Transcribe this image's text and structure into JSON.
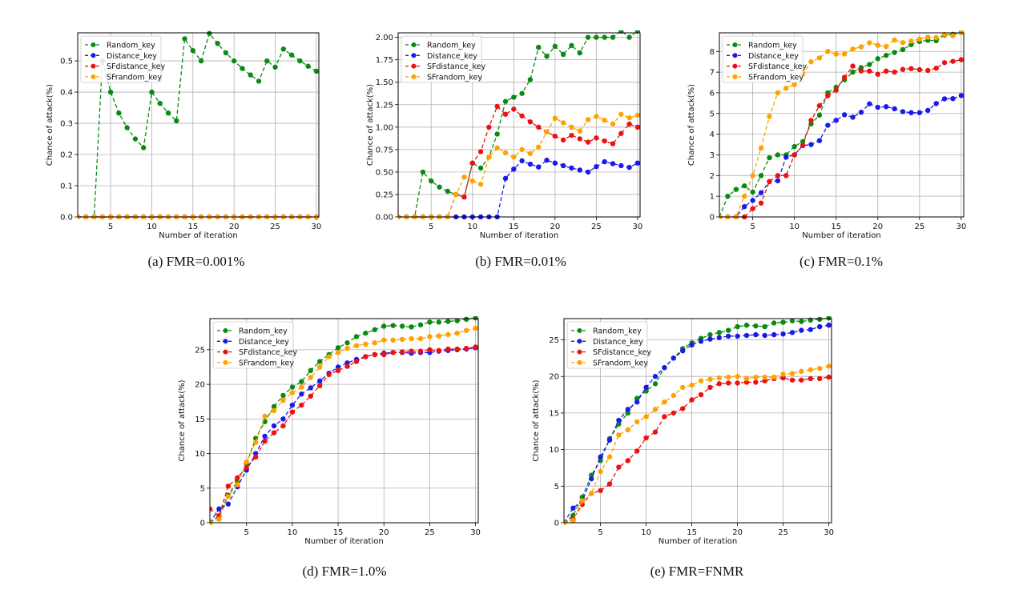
{
  "legend_labels": [
    "Random_key",
    "Distance_key",
    "SFdistance_key",
    "SFrandom_key"
  ],
  "colors": {
    "Random_key": "#0a8a12",
    "Distance_key": "#1a1aee",
    "SFdistance_key": "#ee1111",
    "SFrandom_key": "#ffa200"
  },
  "chart_data": [
    {
      "type": "line",
      "caption": "(a) FMR=0.001%",
      "xlabel": "Number of iteration",
      "ylabel": "Chance of attack(%)",
      "xlim": [
        1,
        30.3
      ],
      "ylim": [
        0,
        0.59
      ],
      "xticks": [
        5,
        10,
        15,
        20,
        25,
        30
      ],
      "yticks": [
        0.0,
        0.1,
        0.2,
        0.3,
        0.4,
        0.5
      ],
      "ytick_labels": [
        "0.0",
        "0.1",
        "0.2",
        "0.3",
        "0.4",
        "0.5"
      ],
      "grid": true,
      "legend_position": "top-left",
      "x": [
        1,
        2,
        3,
        4,
        5,
        6,
        7,
        8,
        9,
        10,
        11,
        12,
        13,
        14,
        15,
        16,
        17,
        18,
        19,
        20,
        21,
        22,
        23,
        24,
        25,
        26,
        27,
        28,
        29,
        30
      ],
      "series": [
        {
          "name": "Random_key",
          "values": [
            0,
            0,
            0,
            0.5,
            0.4,
            0.333,
            0.286,
            0.25,
            0.222,
            0.4,
            0.364,
            0.333,
            0.308,
            0.571,
            0.533,
            0.5,
            0.588,
            0.556,
            0.526,
            0.5,
            0.476,
            0.455,
            0.435,
            0.5,
            0.48,
            0.538,
            0.519,
            0.5,
            0.483,
            0.467
          ]
        },
        {
          "name": "Distance_key",
          "values": [
            0,
            0,
            0,
            0,
            0,
            0,
            0,
            0,
            0,
            0,
            0,
            0,
            0,
            0,
            0,
            0,
            0,
            0,
            0,
            0,
            0,
            0,
            0,
            0,
            0,
            0,
            0,
            0,
            0,
            0
          ]
        },
        {
          "name": "SFdistance_key",
          "values": [
            0,
            0,
            0,
            0,
            0,
            0,
            0,
            0,
            0,
            0,
            0,
            0,
            0,
            0,
            0,
            0,
            0,
            0,
            0,
            0,
            0,
            0,
            0,
            0,
            0,
            0,
            0,
            0,
            0,
            0
          ]
        },
        {
          "name": "SFrandom_key",
          "values": [
            0,
            0,
            0,
            0,
            0,
            0,
            0,
            0,
            0,
            0,
            0,
            0,
            0,
            0,
            0,
            0,
            0,
            0,
            0,
            0,
            0,
            0,
            0,
            0,
            0,
            0,
            0,
            0,
            0,
            0
          ]
        }
      ]
    },
    {
      "type": "line",
      "caption": "(b) FMR=0.01%",
      "xlabel": "Number of iteration",
      "ylabel": "Chance of attack(%)",
      "xlim": [
        1,
        30.3
      ],
      "ylim": [
        0,
        2.05
      ],
      "xticks": [
        5,
        10,
        15,
        20,
        25,
        30
      ],
      "yticks": [
        0,
        0.25,
        0.5,
        0.75,
        1.0,
        1.25,
        1.5,
        1.75,
        2.0
      ],
      "ytick_labels": [
        "0.00",
        "0.25",
        "0.50",
        "0.75",
        "1.00",
        "1.25",
        "1.50",
        "1.75",
        "2.00"
      ],
      "grid": true,
      "legend_position": "top-left",
      "x": [
        1,
        2,
        3,
        4,
        5,
        6,
        7,
        8,
        9,
        10,
        11,
        12,
        13,
        14,
        15,
        16,
        17,
        18,
        19,
        20,
        21,
        22,
        23,
        24,
        25,
        26,
        27,
        28,
        29,
        30
      ],
      "series": [
        {
          "name": "Random_key",
          "values": [
            0,
            0,
            0,
            0.5,
            0.4,
            0.333,
            0.286,
            0.25,
            0.222,
            0.6,
            0.545,
            0.667,
            0.923,
            1.286,
            1.333,
            1.375,
            1.529,
            1.889,
            1.789,
            1.9,
            1.81,
            1.909,
            1.826,
            2.0,
            2.0,
            2.0,
            2.0,
            2.07,
            2.0,
            2.07
          ]
        },
        {
          "name": "Distance_key",
          "values": [
            0,
            0,
            0,
            0,
            0,
            0,
            0,
            0,
            0,
            0,
            0,
            0,
            0,
            0.429,
            0.533,
            0.625,
            0.588,
            0.556,
            0.632,
            0.6,
            0.571,
            0.545,
            0.522,
            0.5,
            0.56,
            0.615,
            0.593,
            0.571,
            0.552,
            0.6
          ]
        },
        {
          "name": "SFdistance_key",
          "values": [
            0,
            0,
            0,
            0,
            0,
            0,
            0,
            0.25,
            0.222,
            0.6,
            0.727,
            1.0,
            1.231,
            1.143,
            1.2,
            1.125,
            1.059,
            1.0,
            0.947,
            0.9,
            0.857,
            0.909,
            0.87,
            0.833,
            0.88,
            0.846,
            0.815,
            0.929,
            1.034,
            1.0
          ]
        },
        {
          "name": "SFrandom_key",
          "values": [
            0,
            0,
            0,
            0,
            0,
            0,
            0,
            0.25,
            0.444,
            0.4,
            0.364,
            0.667,
            0.769,
            0.714,
            0.667,
            0.75,
            0.706,
            0.778,
            0.947,
            1.1,
            1.048,
            1.0,
            0.957,
            1.083,
            1.12,
            1.077,
            1.037,
            1.143,
            1.103,
            1.133
          ]
        }
      ]
    },
    {
      "type": "line",
      "caption": "(c) FMR=0.1%",
      "xlabel": "Number of iteration",
      "ylabel": "Chance of attack(%)",
      "xlim": [
        1,
        30.3
      ],
      "ylim": [
        0,
        8.9
      ],
      "xticks": [
        5,
        10,
        15,
        20,
        25,
        30
      ],
      "yticks": [
        0,
        1,
        2,
        3,
        4,
        5,
        6,
        7,
        8
      ],
      "ytick_labels": [
        "0",
        "1",
        "2",
        "3",
        "4",
        "5",
        "6",
        "7",
        "8"
      ],
      "grid": true,
      "legend_position": "top-left",
      "x": [
        1,
        2,
        3,
        4,
        5,
        6,
        7,
        8,
        9,
        10,
        11,
        12,
        13,
        14,
        15,
        16,
        17,
        18,
        19,
        20,
        21,
        22,
        23,
        24,
        25,
        26,
        27,
        28,
        29,
        30
      ],
      "series": [
        {
          "name": "Random_key",
          "values": [
            0,
            1.0,
            1.33,
            1.5,
            1.2,
            2.0,
            2.86,
            3.0,
            3.0,
            3.4,
            3.64,
            4.5,
            4.92,
            6.0,
            6.27,
            6.63,
            7.0,
            7.22,
            7.37,
            7.65,
            7.81,
            7.95,
            8.09,
            8.33,
            8.48,
            8.54,
            8.52,
            8.79,
            8.83,
            8.93
          ]
        },
        {
          "name": "Distance_key",
          "values": [
            0,
            0,
            0,
            0.5,
            0.8,
            1.17,
            1.71,
            1.75,
            2.89,
            3.0,
            3.45,
            3.5,
            3.69,
            4.43,
            4.67,
            4.94,
            4.82,
            5.06,
            5.47,
            5.3,
            5.33,
            5.23,
            5.09,
            5.04,
            5.04,
            5.15,
            5.48,
            5.71,
            5.72,
            5.87
          ]
        },
        {
          "name": "SFdistance_key",
          "values": [
            0,
            0,
            0,
            0,
            0.4,
            0.67,
            1.71,
            2.0,
            2.0,
            3.0,
            3.45,
            4.67,
            5.38,
            5.86,
            6.13,
            6.75,
            7.29,
            7.06,
            7.05,
            6.9,
            7.05,
            7.0,
            7.13,
            7.17,
            7.12,
            7.08,
            7.19,
            7.46,
            7.52,
            7.6
          ]
        },
        {
          "name": "SFrandom_key",
          "values": [
            0,
            0,
            0,
            1.0,
            2.0,
            3.33,
            4.86,
            6.0,
            6.22,
            6.4,
            6.91,
            7.5,
            7.69,
            8.0,
            7.87,
            7.88,
            8.12,
            8.22,
            8.42,
            8.3,
            8.24,
            8.55,
            8.43,
            8.5,
            8.6,
            8.69,
            8.67,
            8.82,
            8.76,
            8.9
          ]
        }
      ]
    },
    {
      "type": "line",
      "caption": "(d) FMR=1.0%",
      "xlabel": "Number of iteration",
      "ylabel": "Chance of attack(%)",
      "xlim": [
        1,
        30.3
      ],
      "ylim": [
        0,
        29.5
      ],
      "xticks": [
        5,
        10,
        15,
        20,
        25,
        30
      ],
      "yticks": [
        0,
        5,
        10,
        15,
        20,
        25
      ],
      "ytick_labels": [
        "0",
        "5",
        "10",
        "15",
        "20",
        "25"
      ],
      "grid": true,
      "legend_position": "top-left",
      "x": [
        1,
        2,
        3,
        4,
        5,
        6,
        7,
        8,
        9,
        10,
        11,
        12,
        13,
        14,
        15,
        16,
        17,
        18,
        19,
        20,
        21,
        22,
        23,
        24,
        25,
        26,
        27,
        28,
        29,
        30
      ],
      "series": [
        {
          "name": "Random_key",
          "values": [
            0,
            1.0,
            4.0,
            6.0,
            8.5,
            12.2,
            14.6,
            16.8,
            18.4,
            19.6,
            20.4,
            22.0,
            23.3,
            24.3,
            25.3,
            26.0,
            26.9,
            27.4,
            27.9,
            28.4,
            28.5,
            28.4,
            28.3,
            28.6,
            29.0,
            29.0,
            29.1,
            29.2,
            29.4,
            29.6
          ]
        },
        {
          "name": "Distance_key",
          "values": [
            0,
            2.0,
            2.7,
            5.2,
            7.6,
            10.0,
            12.5,
            14.0,
            15.0,
            17.0,
            18.6,
            19.5,
            20.5,
            21.6,
            22.5,
            23.1,
            23.6,
            24.0,
            24.3,
            24.5,
            24.6,
            24.6,
            24.5,
            24.6,
            24.6,
            24.8,
            24.9,
            25.0,
            25.1,
            25.3
          ]
        },
        {
          "name": "SFdistance_key",
          "values": [
            2.0,
            1.0,
            5.3,
            6.5,
            8.0,
            9.5,
            11.8,
            13.0,
            14.0,
            16.0,
            17.0,
            18.3,
            19.8,
            21.4,
            22.0,
            22.6,
            23.3,
            24.0,
            24.3,
            24.3,
            24.6,
            24.7,
            24.8,
            24.8,
            25.0,
            24.9,
            25.1,
            25.1,
            25.2,
            25.4
          ]
        },
        {
          "name": "SFrandom_key",
          "values": [
            0,
            0.5,
            3.8,
            5.5,
            8.8,
            11.6,
            15.4,
            16.2,
            17.7,
            18.8,
            19.6,
            21.0,
            22.5,
            24.0,
            24.6,
            25.2,
            25.6,
            25.8,
            26.0,
            26.4,
            26.4,
            26.5,
            26.6,
            26.6,
            26.9,
            27.0,
            27.2,
            27.4,
            27.8,
            28.1
          ]
        }
      ]
    },
    {
      "type": "line",
      "caption": "(e) FMR=FNMR",
      "xlabel": "Number of iteration",
      "ylabel": "Chance of attack(%)",
      "xlim": [
        1,
        30.3
      ],
      "ylim": [
        0,
        27.9
      ],
      "xticks": [
        5,
        10,
        15,
        20,
        25,
        30
      ],
      "yticks": [
        0,
        5,
        10,
        15,
        20,
        25
      ],
      "ytick_labels": [
        "0",
        "5",
        "10",
        "15",
        "20",
        "25"
      ],
      "grid": true,
      "legend_position": "top-left",
      "x": [
        1,
        2,
        3,
        4,
        5,
        6,
        7,
        8,
        9,
        10,
        11,
        12,
        13,
        14,
        15,
        16,
        17,
        18,
        19,
        20,
        21,
        22,
        23,
        24,
        25,
        26,
        27,
        28,
        29,
        30
      ],
      "series": [
        {
          "name": "Random_key",
          "values": [
            0,
            1.0,
            3.5,
            6.5,
            8.5,
            11.5,
            13.5,
            15.0,
            17.0,
            18.0,
            19.0,
            21.2,
            22.5,
            23.8,
            24.6,
            25.2,
            25.7,
            26.0,
            26.3,
            26.8,
            27.0,
            26.9,
            26.8,
            27.3,
            27.4,
            27.6,
            27.5,
            27.7,
            27.8,
            28.0
          ]
        },
        {
          "name": "Distance_key",
          "values": [
            0,
            2.0,
            3.0,
            6.0,
            9.0,
            11.3,
            14.0,
            15.5,
            16.5,
            18.5,
            20.0,
            21.2,
            22.5,
            23.5,
            24.3,
            24.8,
            25.1,
            25.3,
            25.5,
            25.5,
            25.6,
            25.7,
            25.6,
            25.7,
            25.8,
            26.0,
            26.3,
            26.4,
            26.8,
            27.0
          ]
        },
        {
          "name": "SFdistance_key",
          "values": [
            0,
            0.5,
            2.5,
            4.0,
            4.4,
            5.3,
            7.6,
            8.5,
            9.8,
            11.6,
            12.4,
            14.5,
            15.0,
            15.6,
            16.8,
            17.5,
            18.5,
            19.0,
            19.1,
            19.1,
            19.2,
            19.2,
            19.4,
            19.7,
            19.8,
            19.5,
            19.5,
            19.7,
            19.7,
            19.9
          ]
        },
        {
          "name": "SFrandom_key",
          "values": [
            0,
            0.3,
            3.0,
            4.0,
            7.0,
            9.0,
            12.0,
            12.7,
            13.8,
            14.5,
            15.5,
            16.5,
            17.4,
            18.5,
            18.8,
            19.4,
            19.6,
            19.8,
            19.9,
            20.0,
            19.7,
            19.9,
            19.9,
            19.9,
            20.3,
            20.4,
            20.7,
            20.9,
            21.1,
            21.4
          ]
        }
      ]
    }
  ]
}
